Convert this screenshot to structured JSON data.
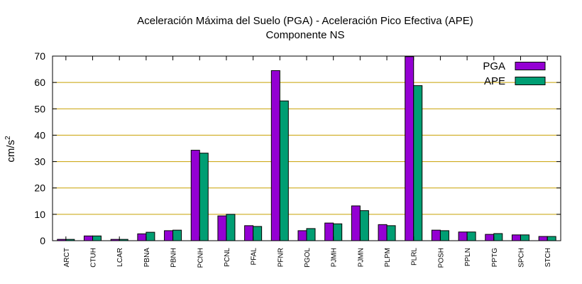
{
  "chart_data": {
    "type": "bar",
    "title": [
      "Aceleración Máxima del Suelo (PGA) -  Aceleración Pico Efectiva (APE)",
      "Componente NS"
    ],
    "xlabel": "",
    "ylabel": "cm/s",
    "ylabel_superscript": "2",
    "ylim": [
      0,
      70
    ],
    "yticks": [
      "0",
      "10",
      "20",
      "30",
      "40",
      "50",
      "60",
      "70"
    ],
    "grid": "horizontal",
    "legend_position": "top-right",
    "categories": [
      "ARCT",
      "CTUH",
      "LCAR",
      "PBNA",
      "PBNH",
      "PCNH",
      "PCNL",
      "PFAL",
      "PFNR",
      "PGOL",
      "PJMH",
      "PJMN",
      "PLPM",
      "PLRL",
      "POSH",
      "PPLN",
      "PPTG",
      "SPCH",
      "STCH"
    ],
    "series": [
      {
        "name": "PGA",
        "color": "#9400d3",
        "values": [
          0.5,
          1.8,
          0.5,
          2.6,
          3.8,
          34.3,
          9.4,
          5.7,
          64.5,
          3.8,
          6.7,
          13.2,
          6.1,
          69.8,
          4.0,
          3.3,
          2.4,
          2.2,
          1.6
        ]
      },
      {
        "name": "APE",
        "color": "#009e73",
        "values": [
          0.5,
          1.8,
          0.5,
          3.2,
          4.0,
          33.2,
          10.0,
          5.4,
          53.0,
          4.6,
          6.4,
          11.4,
          5.7,
          58.8,
          3.8,
          3.3,
          2.7,
          2.2,
          1.6
        ]
      }
    ],
    "colors": {
      "grid": "#c8a000",
      "axis": "#000000"
    }
  }
}
